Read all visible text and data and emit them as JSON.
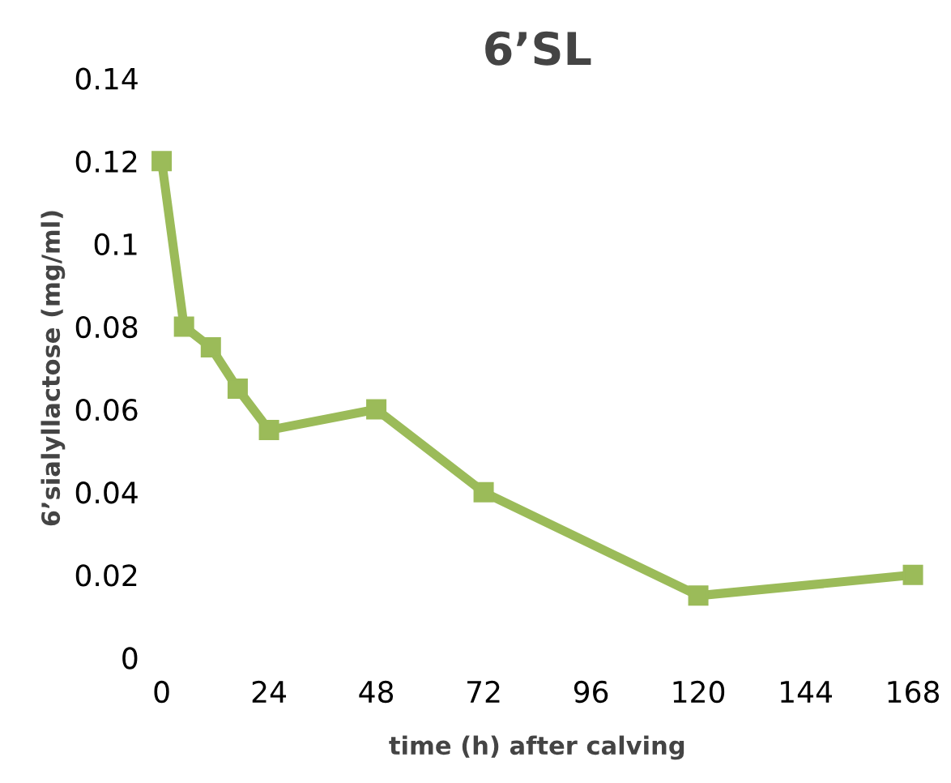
{
  "chart_data": {
    "type": "line",
    "title": "6’SL",
    "xlabel": "time (h) after calving",
    "ylabel": "6’sialyllactose (mg/ml)",
    "x": [
      0,
      5,
      11,
      17,
      24,
      48,
      72,
      120,
      168
    ],
    "series": [
      {
        "color": "#9bbb59",
        "values": [
          0.12,
          0.08,
          0.075,
          0.065,
          0.055,
          0.06,
          0.04,
          0.015,
          0.02
        ]
      }
    ],
    "xlim": [
      0,
      168
    ],
    "xticks": [
      0,
      24,
      48,
      72,
      96,
      120,
      144,
      168
    ],
    "ylim": [
      0,
      0.14
    ],
    "yticks": [
      {
        "value": 0,
        "label": "0"
      },
      {
        "value": 0.02,
        "label": "0.02"
      },
      {
        "value": 0.04,
        "label": "0.04"
      },
      {
        "value": 0.06,
        "label": "0.06"
      },
      {
        "value": 0.08,
        "label": "0.08"
      },
      {
        "value": 0.1,
        "label": "0.1"
      },
      {
        "value": 0.12,
        "label": "0.12"
      },
      {
        "value": 0.14,
        "label": "0.14"
      }
    ],
    "grid": false,
    "legend": false,
    "marker": "square",
    "line_style": "solid"
  }
}
